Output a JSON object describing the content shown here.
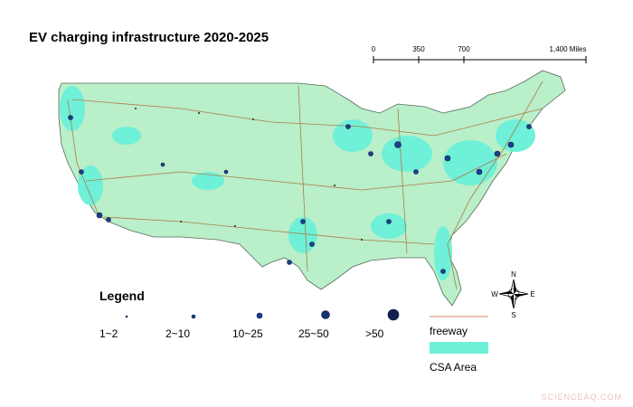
{
  "title": "EV charging infrastructure 2020-2025",
  "scale_bar": {
    "labels": [
      "0",
      "350",
      "700",
      "1,400 Miles"
    ]
  },
  "legend": {
    "title": "Legend",
    "items": [
      "1~2",
      "2~10",
      "10~25",
      "25~50",
      ">50"
    ],
    "freeway": "freeway",
    "csa": "CSA Area"
  },
  "compass": {
    "north": "N",
    "south": "S",
    "east": "E",
    "west": "W"
  },
  "watermark": "SCIENCEAQ.COM"
}
